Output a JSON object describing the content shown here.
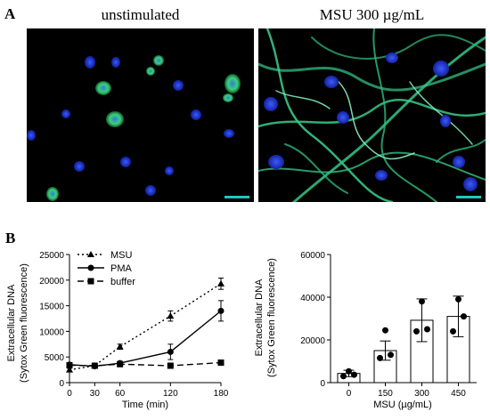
{
  "panel_a": {
    "letter": "A",
    "images": [
      {
        "title": "unstimulated"
      },
      {
        "title": "MSU 300 µg/mL"
      }
    ]
  },
  "panel_b": {
    "letter": "B"
  },
  "colors": {
    "nucleus_blue": "#1f3cff",
    "extracellular_green": "#2fd08a",
    "scale_bar": "#22c5c0",
    "bar_fill": "#ffffff",
    "line": "#000000"
  },
  "chart_data": [
    {
      "type": "line",
      "ylabel": [
        "Extracellular DNA",
        "(Sytox Green fluorescence)"
      ],
      "xlabel": "Time (min)",
      "x": [
        0,
        30,
        60,
        120,
        180
      ],
      "xlim": [
        0,
        180
      ],
      "ylim": [
        0,
        25000
      ],
      "yticks": [
        0,
        5000,
        10000,
        15000,
        20000,
        25000
      ],
      "legend_position": "top-left",
      "series": [
        {
          "name": "MSU",
          "style": "dotted",
          "marker": "triangle",
          "values": [
            2500,
            3300,
            7000,
            13000,
            19300
          ],
          "errors": [
            300,
            300,
            500,
            1000,
            1100
          ]
        },
        {
          "name": "PMA",
          "style": "solid",
          "marker": "circle",
          "values": [
            3500,
            3200,
            3800,
            6000,
            14000
          ],
          "errors": [
            400,
            300,
            300,
            1500,
            2000
          ]
        },
        {
          "name": "buffer",
          "style": "dashed",
          "marker": "square",
          "values": [
            3400,
            3300,
            3600,
            3300,
            3900
          ],
          "errors": [
            300,
            200,
            200,
            200,
            200
          ]
        }
      ]
    },
    {
      "type": "bar",
      "ylabel": [
        "Extracellular DNA",
        "(Sytox Green fluorescence)"
      ],
      "xlabel": "MSU (µg/mL)",
      "categories": [
        "0",
        "150",
        "300",
        "450"
      ],
      "values": [
        4300,
        15000,
        29200,
        31000
      ],
      "errors": [
        1500,
        4500,
        10000,
        9500
      ],
      "points": [
        [
          3000,
          3700,
          5300
        ],
        [
          11500,
          13000,
          24500
        ],
        [
          24000,
          25000,
          38000
        ],
        [
          24000,
          31000,
          39000
        ]
      ],
      "ylim": [
        0,
        60000
      ],
      "yticks": [
        0,
        20000,
        40000,
        60000
      ]
    }
  ]
}
